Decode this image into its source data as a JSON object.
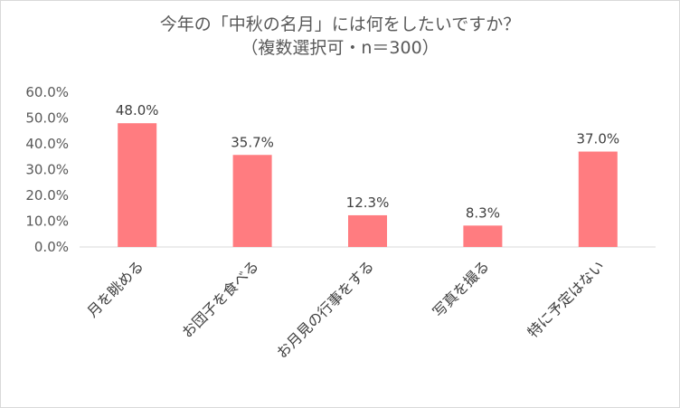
{
  "chart_data": {
    "type": "bar",
    "title": "今年の「中秋の名月」には何をしたいですか？",
    "subtitle": "（複数選択可・n＝300）",
    "categories": [
      "月を眺める",
      "お団子を食べる",
      "お月見の行事をする",
      "写真を撮る",
      "特に予定はない"
    ],
    "values": [
      48.0,
      35.7,
      12.3,
      8.3,
      37.0
    ],
    "data_labels": [
      "48.0%",
      "35.7%",
      "12.3%",
      "8.3%",
      "37.0%"
    ],
    "y_ticks": [
      "0.0%",
      "10.0%",
      "20.0%",
      "30.0%",
      "40.0%",
      "50.0%",
      "60.0%"
    ],
    "ylim": [
      0,
      60
    ],
    "xlabel": "",
    "ylabel": "",
    "grid": false,
    "bar_color": "#ff7c80"
  }
}
